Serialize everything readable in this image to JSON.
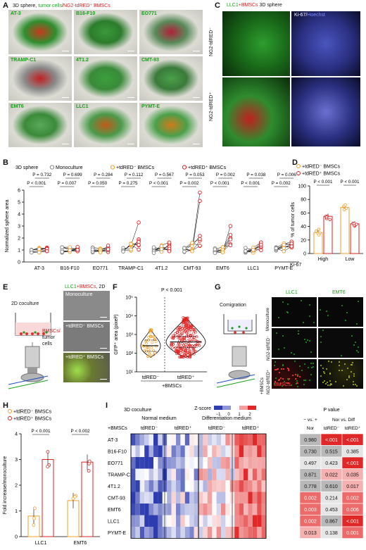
{
  "panel_labels": [
    "A",
    "B",
    "C",
    "D",
    "E",
    "F",
    "G",
    "H",
    "I"
  ],
  "panelA": {
    "title_prefix": "3D sphere, ",
    "title_tumor": "tumor cells",
    "title_sep": "/",
    "title_bmsc": "NG2-tdRED⁺ BMSCs",
    "tiles": [
      {
        "label": "AT-3"
      },
      {
        "label": "B16-F10"
      },
      {
        "label": "EO771"
      },
      {
        "label": "TRAMP-C1"
      },
      {
        "label": "4T1.2"
      },
      {
        "label": "CMT-93"
      },
      {
        "label": "EMT6"
      },
      {
        "label": "LLC1"
      },
      {
        "label": "PYMT-E"
      }
    ]
  },
  "panelC": {
    "title_llc": "LLC1",
    "title_bmsc": "+BMSCs",
    "title_rest": " 3D sphere",
    "right_title_ki": "Ki-67",
    "right_title_sep": "/",
    "right_title_hoechst": "Hoechst",
    "row1": "NG2-tdRED⁻",
    "row2": "NG2-tdRED⁺"
  },
  "panelB": {
    "legend_title": "3D sphere",
    "legend": [
      "Monoculture",
      "+tdRED⁻ BMSCs",
      "+tdRED⁺ BMSCs"
    ],
    "colors": {
      "mono": "#888888",
      "neg": "#f2a02c",
      "pos": "#e02020"
    },
    "ylabel": "Normalized sphere area",
    "p_top": [
      "P = 0.732",
      "P = 0.699",
      "P = 0.284",
      "P = 0.112",
      "P = 0.567",
      "P = 0.053",
      "P = 0.002",
      "P = 0.038",
      "P = 0.006"
    ],
    "p_left": [
      "P < 0.001",
      "P = 0.007",
      "P = 0.050",
      "P = 0.275",
      "P < 0.001",
      "P = 0.002",
      "P < 0.001",
      "P < 0.001",
      "P = 0.002"
    ],
    "chart_data": {
      "type": "scatter",
      "categories": [
        "AT-3",
        "B16-F10",
        "EO771",
        "TRAMP-C1",
        "4T1.2",
        "CMT-93",
        "EMT6",
        "LLC1",
        "PYMT-E"
      ],
      "ylim": [
        0,
        6
      ],
      "yticks": [
        0,
        1,
        2,
        3,
        4,
        5,
        6
      ],
      "ylabel": "Normalized sphere area",
      "series": [
        {
          "name": "Monoculture",
          "means": [
            1,
            1,
            1,
            1,
            1,
            1,
            1,
            1,
            1
          ]
        },
        {
          "name": "+tdRED⁻ BMSCs",
          "means": [
            1.0,
            1.0,
            1.0,
            1.2,
            1.1,
            1.3,
            1.1,
            1.0,
            1.2
          ]
        },
        {
          "name": "+tdRED⁺ BMSCs",
          "means": [
            1.1,
            1.1,
            1.1,
            1.6,
            1.3,
            2.2,
            1.7,
            1.3,
            1.3
          ]
        }
      ]
    }
  },
  "panelD": {
    "legend": [
      "+tdRED⁻ BMSCs",
      "+tdRED⁺ BMSCs"
    ],
    "ylabel": "% of tumor cells",
    "xlabel_prefix": "Ki-67",
    "p": [
      "P < 0.001",
      "P < 0.001"
    ],
    "chart_data": {
      "type": "bar",
      "categories": [
        "High",
        "Low"
      ],
      "series": [
        {
          "name": "+tdRED⁻ BMSCs",
          "values": [
            31,
            68
          ]
        },
        {
          "name": "+tdRED⁺ BMSCs",
          "values": [
            55,
            44
          ]
        }
      ],
      "ylim": [
        0,
        100
      ],
      "yticks": [
        0,
        20,
        40,
        60,
        80,
        100
      ]
    }
  },
  "panelE": {
    "title": "2D coculture",
    "device_label_1": "BMSCs/",
    "device_label_2": "tumor",
    "device_label_3": "cells",
    "img_title_llc": "LLC1",
    "img_title_bmsc": "+BMSCs",
    "img_title_rest": ", 2D",
    "rows": [
      "Monoculture",
      "+tdRED⁻ BMSCs",
      "+tdRED⁺ BMSCs"
    ]
  },
  "panelF": {
    "p": "P < 0.001",
    "ylabel": "GFP⁺ area (pixel²)",
    "yticks": [
      "10⁵",
      "10⁴",
      "10³",
      "10²",
      "10¹"
    ],
    "groups": [
      "tdRED⁻",
      "tdRED⁺"
    ],
    "group_caption": "+BMSCs",
    "chart_data": {
      "type": "violin",
      "categories": [
        "tdRED⁻",
        "tdRED⁺"
      ],
      "yscale": "log",
      "ylim": [
        10,
        100000
      ],
      "medians": [
        250,
        400
      ]
    }
  },
  "panelG": {
    "title": "Comigration",
    "col_llc": "LLC1",
    "col_emt": "EMT6",
    "row1": "Monoculture",
    "row2_a": "+BMSCs",
    "row2_b": "NG2-tdRED⁻",
    "row3": "NG2-tdRED⁺",
    "bmsc_label": "BMSCs"
  },
  "panelH": {
    "legend": [
      "+tdRED⁻ BMSCs",
      "+tdRED⁺ BMSCs"
    ],
    "ylabel": "Fold increase/monoculture",
    "p": [
      "P < 0.001",
      "P < 0.002"
    ],
    "chart_data": {
      "type": "bar",
      "categories": [
        "LLC1",
        "EMT6"
      ],
      "series": [
        {
          "name": "+tdRED⁻ BMSCs",
          "values": [
            0.8,
            1.4
          ]
        },
        {
          "name": "+tdRED⁺ BMSCs",
          "values": [
            3.0,
            2.9
          ]
        }
      ],
      "ylim": [
        0,
        4
      ],
      "yticks": [
        0,
        1,
        2,
        3,
        4
      ]
    }
  },
  "panelI": {
    "title": "3D coculture",
    "normal": "Normal medium",
    "diff": "Differentiation medium",
    "zscore": "Z-score",
    "zticks": [
      "−1",
      "0",
      "1",
      "2"
    ],
    "bmsc_label": "+BMSCs",
    "groups": [
      "tdRED⁻",
      "tdRED⁺",
      "tdRED⁻",
      "tdRED⁺"
    ],
    "rows": [
      "AT-3",
      "B16-F10",
      "EO771",
      "TRAMP-C1",
      "4T1.2",
      "CMT-93",
      "EMT6",
      "LLC1",
      "PYMT-E"
    ],
    "pvalue_title": "P value",
    "pvalue_sub1": "− vs. +",
    "pvalue_sub2": "Nor vs. Diff",
    "pvalue_cols": [
      "Nor",
      "tdRED⁻",
      "tdRED⁺"
    ],
    "pvalues": [
      [
        "0.980",
        "<.001",
        "<.001"
      ],
      [
        "0.730",
        "0.515",
        "0.385"
      ],
      [
        "0.497",
        "0.423",
        "<.001"
      ],
      [
        "0.871",
        "0.022",
        "0.035"
      ],
      [
        "0.778",
        "0.610",
        "0.017"
      ],
      [
        "0.002",
        "0.214",
        "0.002"
      ],
      [
        "0.003",
        "0.453",
        "0.006"
      ],
      [
        "0.002",
        "0.867",
        "<.001"
      ],
      [
        "0.013",
        "0.138",
        "0.001"
      ]
    ]
  }
}
